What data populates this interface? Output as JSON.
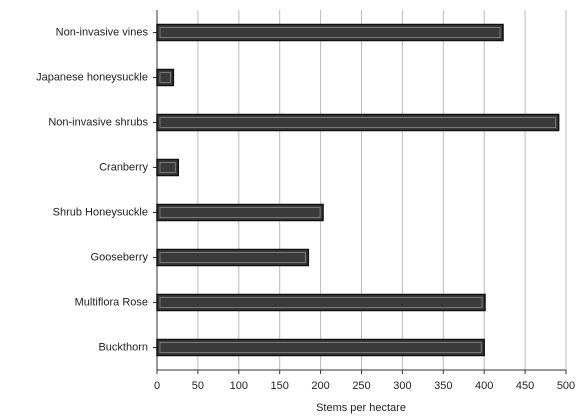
{
  "chart_data": {
    "type": "bar",
    "orientation": "horizontal",
    "categories": [
      "Non-invasive vines",
      "Japanese honeysuckle",
      "Non-invasive shrubs",
      "Cranberry",
      "Shrub Honeysuckle",
      "Gooseberry",
      "Multiflora Rose",
      "Buckthorn"
    ],
    "values": [
      423,
      20,
      491,
      26,
      203,
      185,
      401,
      400
    ],
    "color": "#3a3a3a",
    "xlabel": "Stems per hectare",
    "xlim": [
      0,
      500
    ],
    "xticks": [
      0,
      50,
      100,
      150,
      200,
      250,
      300,
      350,
      400,
      450,
      500
    ],
    "grid": true
  }
}
